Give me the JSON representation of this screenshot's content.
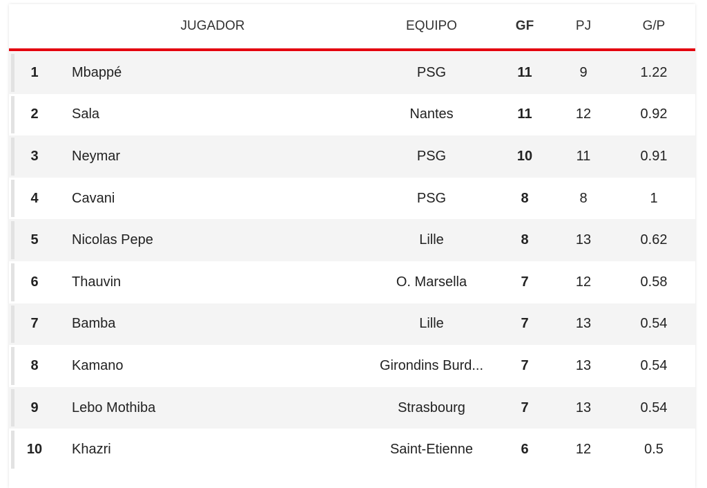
{
  "colors": {
    "accent": "#e3000f",
    "row_alt": "#f4f4f4"
  },
  "headers": {
    "rank": "",
    "player": "JUGADOR",
    "team": "EQUIPO",
    "gf": "GF",
    "pj": "PJ",
    "gp": "G/P"
  },
  "rows": [
    {
      "rank": "1",
      "player": "Mbappé",
      "team": "PSG",
      "gf": "11",
      "pj": "9",
      "gp": "1.22"
    },
    {
      "rank": "2",
      "player": "Sala",
      "team": "Nantes",
      "gf": "11",
      "pj": "12",
      "gp": "0.92"
    },
    {
      "rank": "3",
      "player": "Neymar",
      "team": "PSG",
      "gf": "10",
      "pj": "11",
      "gp": "0.91"
    },
    {
      "rank": "4",
      "player": "Cavani",
      "team": "PSG",
      "gf": "8",
      "pj": "8",
      "gp": "1"
    },
    {
      "rank": "5",
      "player": "Nicolas Pepe",
      "team": "Lille",
      "gf": "8",
      "pj": "13",
      "gp": "0.62"
    },
    {
      "rank": "6",
      "player": "Thauvin",
      "team": "O. Marsella",
      "gf": "7",
      "pj": "12",
      "gp": "0.58"
    },
    {
      "rank": "7",
      "player": "Bamba",
      "team": "Lille",
      "gf": "7",
      "pj": "13",
      "gp": "0.54"
    },
    {
      "rank": "8",
      "player": "Kamano",
      "team": "Girondins Burd...",
      "gf": "7",
      "pj": "13",
      "gp": "0.54"
    },
    {
      "rank": "9",
      "player": "Lebo Mothiba",
      "team": "Strasbourg",
      "gf": "7",
      "pj": "13",
      "gp": "0.54"
    },
    {
      "rank": "10",
      "player": "Khazri",
      "team": "Saint-Etienne",
      "gf": "6",
      "pj": "12",
      "gp": "0.5"
    }
  ]
}
